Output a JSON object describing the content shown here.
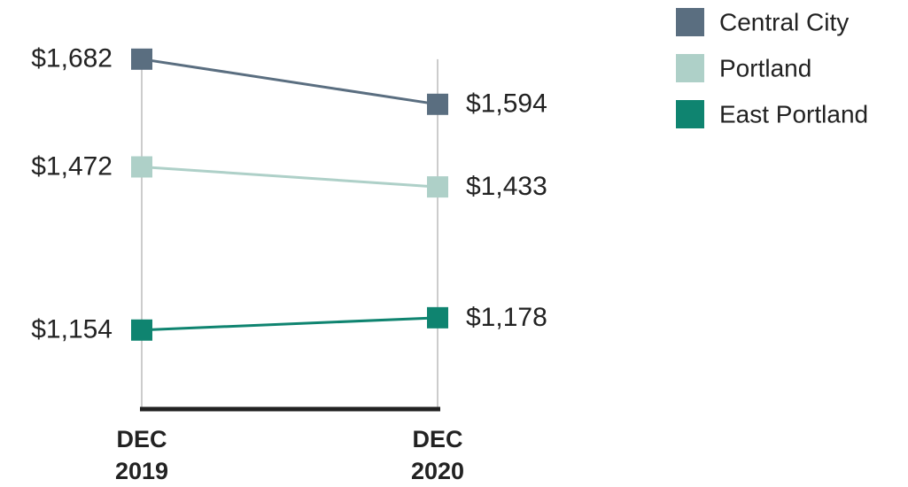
{
  "chart_data": {
    "type": "line",
    "categories": [
      "DEC 2019",
      "DEC 2020"
    ],
    "series": [
      {
        "name": "Central City",
        "color": "#5a6e80",
        "values": [
          1682,
          1594
        ],
        "value_labels": [
          "$1,682",
          "$1,594"
        ]
      },
      {
        "name": "Portland",
        "color": "#aed0c8",
        "values": [
          1472,
          1433
        ],
        "value_labels": [
          "$1,472",
          "$1,433"
        ]
      },
      {
        "name": "East Portland",
        "color": "#0f8470",
        "values": [
          1154,
          1178
        ],
        "value_labels": [
          "$1,154",
          "$1,178"
        ]
      }
    ],
    "ylim": [
      1000,
      1730
    ],
    "legend": "top-right"
  }
}
